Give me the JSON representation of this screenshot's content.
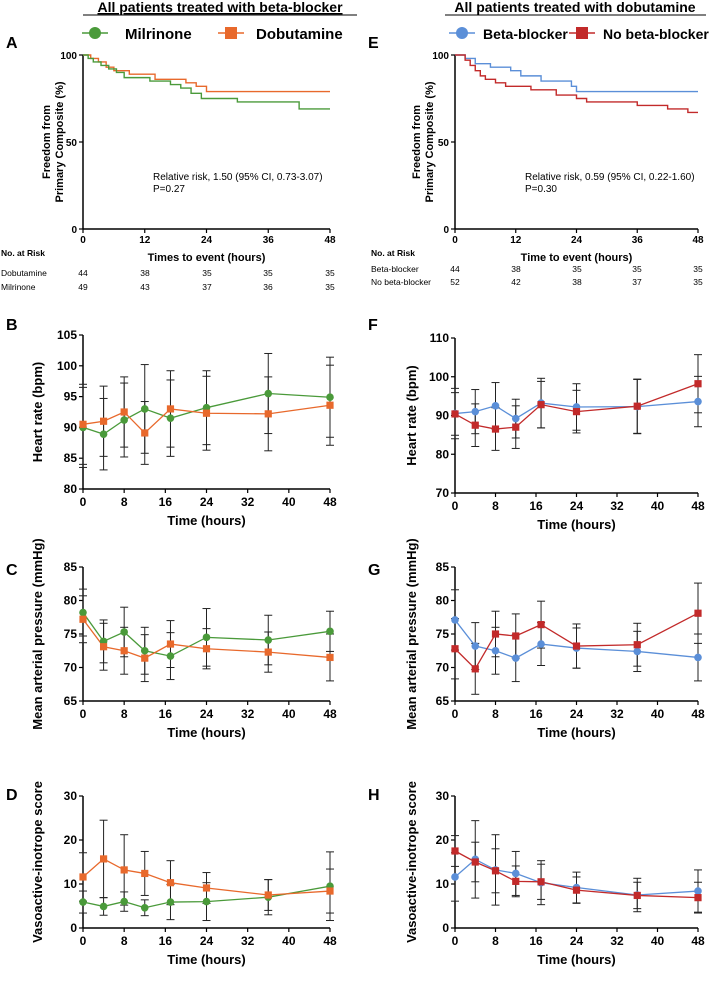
{
  "headings": {
    "left": "All patients treated with beta-blocker",
    "right": "All patients treated with dobutamine"
  },
  "legends": {
    "left": [
      "Milrinone",
      "Dobutamine"
    ],
    "right": [
      "Beta-blocker",
      "No beta-blocker"
    ]
  },
  "colors": {
    "milrinone": "#4a9a3a",
    "dobutamine": "#e8692c",
    "beta_blocker": "#5b8fd8",
    "no_beta_blocker": "#c22a2a"
  },
  "chart_data": [
    {
      "panel": "A",
      "type": "line",
      "step": true,
      "ylabel": "Freedom from Primary Composite (%)",
      "xlabel": "Times to event (hours)",
      "xlim": [
        0,
        48
      ],
      "ylim": [
        0,
        100
      ],
      "xticks": [
        0,
        12,
        24,
        36,
        48
      ],
      "yticks": [
        0,
        50,
        100
      ],
      "annotation": [
        "Relative risk, 1.50 (95% CI, 0.73-3.07)",
        "P=0.27"
      ],
      "series": [
        {
          "name": "Dobutamine",
          "color": "#e8692c",
          "points": [
            [
              0,
              100
            ],
            [
              1.5,
              98
            ],
            [
              3,
              96
            ],
            [
              4.5,
              93
            ],
            [
              6,
              91
            ],
            [
              9,
              89
            ],
            [
              14,
              86
            ],
            [
              20,
              84
            ],
            [
              22,
              82
            ],
            [
              24,
              79
            ],
            [
              48,
              79
            ]
          ]
        },
        {
          "name": "Milrinone",
          "color": "#4a9a3a",
          "points": [
            [
              0,
              100
            ],
            [
              1,
              98
            ],
            [
              2,
              96
            ],
            [
              3.5,
              94
            ],
            [
              5,
              92
            ],
            [
              6.5,
              90
            ],
            [
              8,
              87
            ],
            [
              13,
              85
            ],
            [
              17,
              83
            ],
            [
              19,
              81
            ],
            [
              21,
              78
            ],
            [
              23,
              75
            ],
            [
              30,
              73
            ],
            [
              42,
              69
            ],
            [
              48,
              69
            ]
          ]
        }
      ],
      "risk_table": {
        "title": "No. at Risk",
        "rows": [
          {
            "label": "Dobutamine",
            "values": [
              "44",
              "38",
              "35",
              "35",
              "35"
            ]
          },
          {
            "label": "Milrinone",
            "values": [
              "49",
              "43",
              "37",
              "36",
              "35"
            ]
          }
        ]
      }
    },
    {
      "panel": "E",
      "type": "line",
      "step": true,
      "ylabel": "Freedom from Primary Composite (%)",
      "xlabel": "Time to event (hours)",
      "xlim": [
        0,
        48
      ],
      "ylim": [
        0,
        100
      ],
      "xticks": [
        0,
        12,
        24,
        36,
        48
      ],
      "yticks": [
        0,
        50,
        100
      ],
      "annotation": [
        "Relative risk, 0.59 (95% CI, 0.22-1.60)",
        "P=0.30"
      ],
      "series": [
        {
          "name": "Beta-blocker",
          "color": "#5b8fd8",
          "points": [
            [
              0,
              100
            ],
            [
              2,
              98
            ],
            [
              4,
              95
            ],
            [
              7,
              93
            ],
            [
              11,
              91
            ],
            [
              13,
              88
            ],
            [
              17,
              85
            ],
            [
              23,
              82
            ],
            [
              24,
              79
            ],
            [
              48,
              79
            ]
          ]
        },
        {
          "name": "No beta-blocker",
          "color": "#c22a2a",
          "points": [
            [
              0,
              100
            ],
            [
              2,
              97
            ],
            [
              3,
              94
            ],
            [
              4,
              91
            ],
            [
              5,
              88
            ],
            [
              6,
              86
            ],
            [
              8,
              84
            ],
            [
              10,
              82
            ],
            [
              15,
              80
            ],
            [
              20,
              77
            ],
            [
              24,
              75
            ],
            [
              26,
              73
            ],
            [
              36,
              71
            ],
            [
              42,
              69
            ],
            [
              46,
              67
            ],
            [
              48,
              67
            ]
          ]
        }
      ],
      "risk_table": {
        "title": "No. at Risk",
        "rows": [
          {
            "label": "Beta-blocker",
            "values": [
              "44",
              "38",
              "35",
              "35",
              "35"
            ]
          },
          {
            "label": "No beta-blocker",
            "values": [
              "52",
              "42",
              "38",
              "37",
              "35"
            ]
          }
        ]
      }
    },
    {
      "panel": "B",
      "type": "line",
      "ylabel": "Heart rate (bpm)",
      "xlabel": "Time (hours)",
      "xlim": [
        0,
        48
      ],
      "ylim": [
        80,
        105
      ],
      "xticks": [
        0,
        8,
        16,
        24,
        32,
        40,
        48
      ],
      "yticks": [
        80,
        85,
        90,
        95,
        100,
        105
      ],
      "x": [
        0,
        4,
        8,
        12,
        17,
        24,
        36,
        48
      ],
      "series": [
        {
          "name": "Milrinone",
          "color": "#4a9a3a",
          "marker": "circle",
          "values": [
            90.0,
            88.9,
            91.2,
            93.0,
            91.5,
            93.2,
            95.5,
            94.9
          ],
          "err": [
            6.5,
            5.8,
            6.0,
            7.2,
            6.2,
            6.0,
            6.5,
            6.5
          ]
        },
        {
          "name": "Dobutamine",
          "color": "#e8692c",
          "marker": "square",
          "values": [
            90.5,
            91.0,
            92.5,
            89.1,
            93.0,
            92.3,
            92.2,
            93.6
          ],
          "err": [
            6.5,
            5.7,
            5.7,
            5.1,
            6.2,
            6.0,
            6.0,
            6.5
          ]
        }
      ]
    },
    {
      "panel": "F",
      "type": "line",
      "ylabel": "Heart rate (bpm)",
      "xlabel": "Time (hours)",
      "xlim": [
        0,
        48
      ],
      "ylim": [
        70,
        110
      ],
      "xticks": [
        0,
        8,
        16,
        24,
        32,
        40,
        48
      ],
      "yticks": [
        70,
        80,
        90,
        100,
        110
      ],
      "x": [
        0,
        4,
        8,
        12,
        17,
        24,
        36,
        48
      ],
      "series": [
        {
          "name": "Beta-blocker",
          "color": "#5b8fd8",
          "marker": "circle",
          "values": [
            90.5,
            91.0,
            92.5,
            89.2,
            93.2,
            92.2,
            92.3,
            93.6
          ],
          "err": [
            6.5,
            5.7,
            6.0,
            5.0,
            6.4,
            6.0,
            7.0,
            6.5
          ]
        },
        {
          "name": "No beta-blocker",
          "color": "#c22a2a",
          "marker": "square",
          "values": [
            90.4,
            87.5,
            86.5,
            87.0,
            92.8,
            91.0,
            92.4,
            98.2
          ],
          "err": [
            5.5,
            5.5,
            5.5,
            5.5,
            6.0,
            5.5,
            7.0,
            7.5
          ]
        }
      ]
    },
    {
      "panel": "C",
      "type": "line",
      "ylabel": "Mean arterial pressure (mmHg)",
      "xlabel": "Time (hours)",
      "xlim": [
        0,
        48
      ],
      "ylim": [
        65,
        85
      ],
      "xticks": [
        0,
        8,
        16,
        24,
        32,
        40,
        48
      ],
      "yticks": [
        65,
        70,
        75,
        80,
        85
      ],
      "x": [
        0,
        4,
        8,
        12,
        17,
        24,
        36,
        48
      ],
      "series": [
        {
          "name": "Milrinone",
          "color": "#4a9a3a",
          "marker": "circle",
          "values": [
            78.2,
            73.9,
            75.3,
            72.5,
            71.7,
            74.5,
            74.1,
            75.4
          ],
          "err": [
            3.5,
            3.2,
            3.7,
            3.5,
            3.5,
            4.3,
            3.7,
            3.0
          ]
        },
        {
          "name": "Dobutamine",
          "color": "#e8692c",
          "marker": "square",
          "values": [
            77.2,
            73.1,
            72.5,
            71.4,
            73.5,
            72.8,
            72.3,
            71.5
          ],
          "err": [
            3.5,
            3.5,
            3.5,
            3.5,
            3.5,
            3.0,
            3.0,
            3.5
          ]
        }
      ]
    },
    {
      "panel": "G",
      "type": "line",
      "ylabel": "Mean arterial pressure (mmHg)",
      "xlabel": "Time (hours)",
      "xlim": [
        0,
        48
      ],
      "ylim": [
        65,
        85
      ],
      "xticks": [
        0,
        8,
        16,
        24,
        32,
        40,
        48
      ],
      "yticks": [
        65,
        70,
        75,
        80,
        85
      ],
      "x": [
        0,
        4,
        8,
        12,
        17,
        24,
        36,
        48
      ],
      "series": [
        {
          "name": "Beta-blocker",
          "color": "#5b8fd8",
          "marker": "circle",
          "values": [
            77.1,
            73.2,
            72.5,
            71.4,
            73.5,
            72.9,
            72.4,
            71.5
          ],
          "err": [
            4.5,
            3.5,
            3.5,
            3.5,
            3.2,
            3.0,
            3.0,
            3.5
          ]
        },
        {
          "name": "No beta-blocker",
          "color": "#c22a2a",
          "marker": "square",
          "values": [
            72.8,
            69.8,
            75.0,
            74.7,
            76.4,
            73.2,
            73.4,
            78.1
          ],
          "err": [
            4.5,
            3.8,
            3.4,
            3.3,
            3.5,
            3.3,
            3.2,
            4.5
          ]
        }
      ]
    },
    {
      "panel": "D",
      "type": "line",
      "ylabel": "Vasoactive-inotrope score",
      "xlabel": "Time (hours)",
      "xlim": [
        0,
        48
      ],
      "ylim": [
        0,
        30
      ],
      "xticks": [
        0,
        8,
        16,
        24,
        32,
        40,
        48
      ],
      "yticks": [
        0,
        10,
        20,
        30
      ],
      "x": [
        0,
        4,
        8,
        12,
        17,
        24,
        36,
        48
      ],
      "series": [
        {
          "name": "Milrinone",
          "color": "#4a9a3a",
          "marker": "circle",
          "values": [
            5.9,
            4.9,
            6.0,
            4.6,
            5.9,
            6.0,
            7.0,
            9.5
          ],
          "err": [
            2.5,
            2.0,
            2.2,
            1.8,
            4.0,
            4.3,
            4.0,
            7.8
          ]
        },
        {
          "name": "Dobutamine",
          "color": "#e8692c",
          "marker": "square",
          "values": [
            11.6,
            15.7,
            13.2,
            12.4,
            10.3,
            9.1,
            7.5,
            8.4
          ],
          "err": [
            5.5,
            8.8,
            8.0,
            5.0,
            5.0,
            3.5,
            3.5,
            5.0
          ]
        }
      ]
    },
    {
      "panel": "H",
      "type": "line",
      "ylabel": "Vasoactive-inotrope score",
      "xlabel": "Time (hours)",
      "xlim": [
        0,
        48
      ],
      "ylim": [
        0,
        30
      ],
      "xticks": [
        0,
        8,
        16,
        24,
        32,
        40,
        48
      ],
      "yticks": [
        0,
        10,
        20,
        30
      ],
      "x": [
        0,
        4,
        8,
        12,
        17,
        24,
        36,
        48
      ],
      "series": [
        {
          "name": "Beta-blocker",
          "color": "#5b8fd8",
          "marker": "circle",
          "values": [
            11.6,
            15.6,
            13.2,
            12.4,
            10.3,
            9.2,
            7.5,
            8.4
          ],
          "err": [
            5.5,
            8.8,
            8.0,
            5.0,
            5.0,
            3.5,
            3.8,
            4.8
          ]
        },
        {
          "name": "No beta-blocker",
          "color": "#c22a2a",
          "marker": "square",
          "values": [
            17.5,
            15.0,
            13.0,
            10.6,
            10.5,
            8.6,
            7.4,
            6.9
          ],
          "err": [
            3.5,
            4.5,
            5.0,
            3.5,
            4.0,
            3.0,
            3.0,
            3.5
          ]
        }
      ]
    }
  ]
}
